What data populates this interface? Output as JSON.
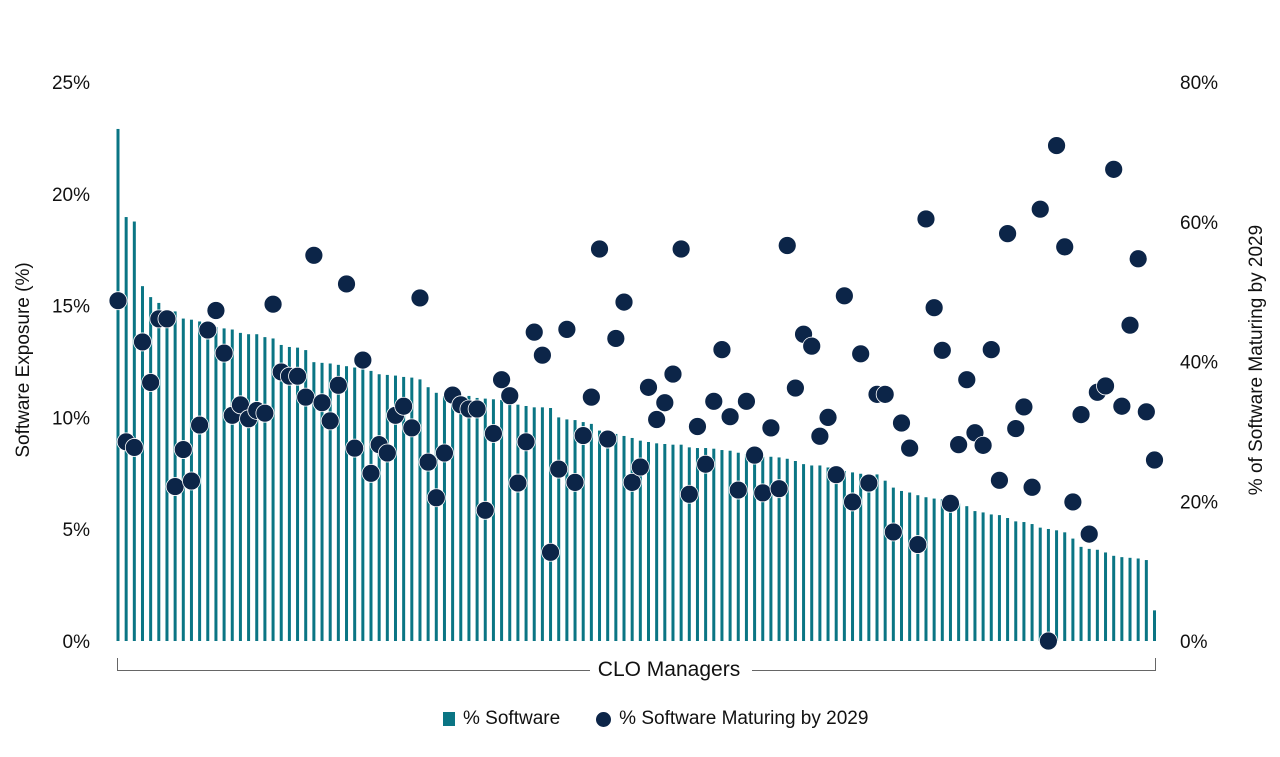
{
  "chart_data": {
    "type": "bar+scatter",
    "xlabel": "CLO Managers",
    "ylabel_left": "Software Exposure (%)",
    "ylabel_right": "% of Software Maturing by 2029",
    "ylim_left": [
      0,
      25
    ],
    "ylim_right": [
      0,
      80
    ],
    "yticks_left": [
      "0%",
      "5%",
      "10%",
      "15%",
      "20%",
      "25%"
    ],
    "yticks_right": [
      "0%",
      "20%",
      "40%",
      "60%",
      "80%"
    ],
    "grid": false,
    "legend_position": "bottom",
    "colors": {
      "bars": "#0a7584",
      "dots": "#0c2548"
    },
    "series": [
      {
        "name": "% Software",
        "type": "bar",
        "axis": "left",
        "values": [
          22.9,
          18.96,
          18.76,
          15.87,
          15.38,
          15.12,
          14.77,
          14.74,
          14.42,
          14.37,
          14.29,
          14.2,
          14.04,
          13.98,
          13.93,
          13.78,
          13.72,
          13.72,
          13.59,
          13.53,
          13.24,
          13.15,
          13.12,
          13.01,
          12.47,
          12.44,
          12.41,
          12.35,
          12.29,
          12.23,
          12.14,
          12.08,
          11.93,
          11.9,
          11.87,
          11.81,
          11.78,
          11.7,
          11.35,
          11.1,
          10.95,
          10.92,
          10.9,
          10.96,
          10.87,
          10.84,
          10.81,
          10.78,
          10.66,
          10.57,
          10.51,
          10.45,
          10.45,
          10.42,
          10.0,
          9.91,
          9.88,
          9.79,
          9.71,
          9.41,
          9.32,
          9.26,
          9.17,
          9.08,
          8.96,
          8.9,
          8.84,
          8.81,
          8.78,
          8.78,
          8.66,
          8.63,
          8.63,
          8.6,
          8.54,
          8.51,
          8.42,
          8.36,
          8.3,
          8.24,
          8.24,
          8.21,
          8.15,
          8.05,
          7.91,
          7.85,
          7.85,
          7.76,
          7.65,
          7.6,
          7.54,
          7.48,
          7.45,
          7.45,
          7.17,
          6.86,
          6.71,
          6.64,
          6.52,
          6.43,
          6.37,
          6.34,
          6.28,
          6.15,
          6.03,
          5.81,
          5.75,
          5.66,
          5.63,
          5.5,
          5.35,
          5.32,
          5.23,
          5.07,
          5.01,
          4.95,
          4.86,
          4.58,
          4.21,
          4.12,
          4.08,
          3.96,
          3.81,
          3.75,
          3.72,
          3.69,
          3.62,
          1.37
        ]
      },
      {
        "name": "% Software Maturing by 2029",
        "type": "scatter",
        "axis": "right",
        "values": [
          48.7,
          28.5,
          27.7,
          42.8,
          37.0,
          46.1,
          46.1,
          22.1,
          27.4,
          22.9,
          30.9,
          44.5,
          47.3,
          41.2,
          32.3,
          33.8,
          31.8,
          33.0,
          32.6,
          48.2,
          38.5,
          37.9,
          37.9,
          34.9,
          55.2,
          34.1,
          31.5,
          36.6,
          51.1,
          27.6,
          40.2,
          24.0,
          28.1,
          26.9,
          32.3,
          33.6,
          30.5,
          49.1,
          25.6,
          20.5,
          26.9,
          35.2,
          33.8,
          33.2,
          33.2,
          18.7,
          29.7,
          37.4,
          35.1,
          22.6,
          28.5,
          44.2,
          40.9,
          12.7,
          24.6,
          44.6,
          22.7,
          29.4,
          34.9,
          56.1,
          28.9,
          43.3,
          48.5,
          22.7,
          24.9,
          36.3,
          31.7,
          34.1,
          38.2,
          56.1,
          21.0,
          30.7,
          25.3,
          34.3,
          41.7,
          32.1,
          21.6,
          34.3,
          26.6,
          21.2,
          30.5,
          21.8,
          56.6,
          36.2,
          43.9,
          42.2,
          29.3,
          32.0,
          23.8,
          49.4,
          19.9,
          41.1,
          22.6,
          35.3,
          35.3,
          15.6,
          31.2,
          27.6,
          13.8,
          60.4,
          47.7,
          41.6,
          19.7,
          28.1,
          37.4,
          29.8,
          28.0,
          41.7,
          23.0,
          58.3,
          30.4,
          33.5,
          22.0,
          61.8,
          0.0,
          70.9,
          56.4,
          19.9,
          32.4,
          15.3,
          35.6,
          36.5,
          67.5,
          33.6,
          45.2,
          54.7,
          32.8,
          25.9
        ]
      }
    ]
  },
  "legend": {
    "bars_label": "% Software",
    "dots_label": "% Software Maturing by 2029"
  }
}
